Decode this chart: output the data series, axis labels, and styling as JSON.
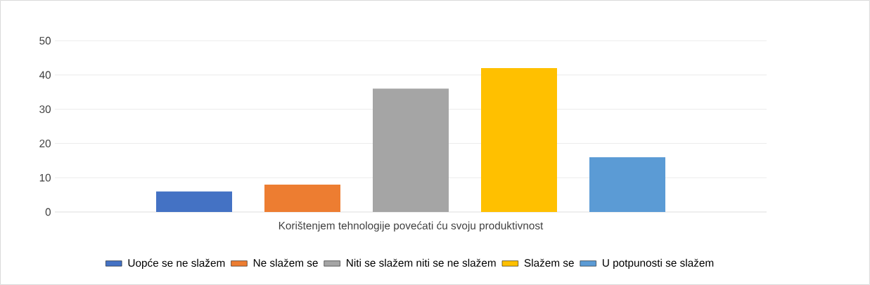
{
  "chart_data": {
    "type": "bar",
    "categories": [
      "Korištenjem tehnologije povećati ću svoju produktivnost"
    ],
    "series": [
      {
        "name": "Uopće se ne slažem",
        "color": "#4472c4",
        "values": [
          6
        ]
      },
      {
        "name": "Ne slažem se",
        "color": "#ed7d31",
        "values": [
          8
        ]
      },
      {
        "name": "Niti se slažem niti se ne slažem",
        "color": "#a5a5a5",
        "values": [
          36
        ]
      },
      {
        "name": "Slažem se",
        "color": "#ffc000",
        "values": [
          42
        ]
      },
      {
        "name": "U potpunosti se slažem",
        "color": "#5b9bd5",
        "values": [
          16
        ]
      }
    ],
    "ylim": [
      0,
      50
    ],
    "yticks": [
      0,
      10,
      20,
      30,
      40,
      50
    ],
    "grid": "y",
    "legend": "bottom"
  }
}
